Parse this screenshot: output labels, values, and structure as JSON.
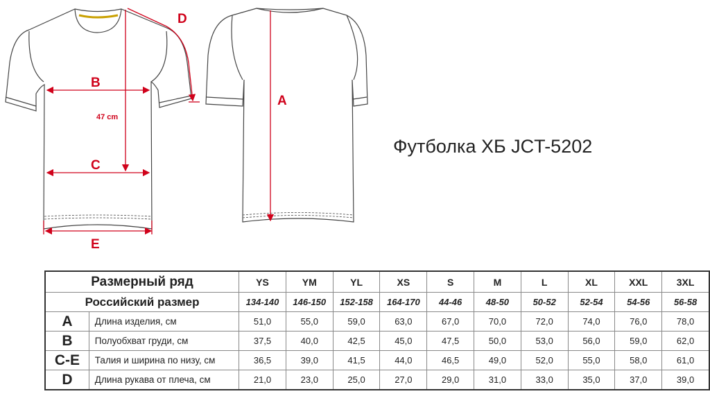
{
  "product_title": "Футболка ХБ JCT-5202",
  "diagram": {
    "labels": {
      "a": "A",
      "b": "B",
      "c": "C",
      "d": "D",
      "e": "E"
    },
    "length_note": "47 cm",
    "accent_color": "#d0021b"
  },
  "table": {
    "size_row_label": "Размерный ряд",
    "ru_row_label": "Российский размер",
    "sizes": [
      "YS",
      "YM",
      "YL",
      "XS",
      "S",
      "M",
      "L",
      "XL",
      "XXL",
      "3XL"
    ],
    "ru_sizes": [
      "134-140",
      "146-150",
      "152-158",
      "164-170",
      "44-46",
      "48-50",
      "50-52",
      "52-54",
      "54-56",
      "56-58"
    ],
    "rows": [
      {
        "letter": "A",
        "label": "Длина изделия, см",
        "values": [
          "51,0",
          "55,0",
          "59,0",
          "63,0",
          "67,0",
          "70,0",
          "72,0",
          "74,0",
          "76,0",
          "78,0"
        ]
      },
      {
        "letter": "B",
        "label": "Полуобхват груди, см",
        "values": [
          "37,5",
          "40,0",
          "42,5",
          "45,0",
          "47,5",
          "50,0",
          "53,0",
          "56,0",
          "59,0",
          "62,0"
        ]
      },
      {
        "letter": "C-E",
        "label": "Талия и ширина по низу, см",
        "values": [
          "36,5",
          "39,0",
          "41,5",
          "44,0",
          "46,5",
          "49,0",
          "52,0",
          "55,0",
          "58,0",
          "61,0"
        ]
      },
      {
        "letter": "D",
        "label": "Длина рукава от плеча, см",
        "values": [
          "21,0",
          "23,0",
          "25,0",
          "27,0",
          "29,0",
          "31,0",
          "33,0",
          "35,0",
          "37,0",
          "39,0"
        ]
      }
    ]
  }
}
